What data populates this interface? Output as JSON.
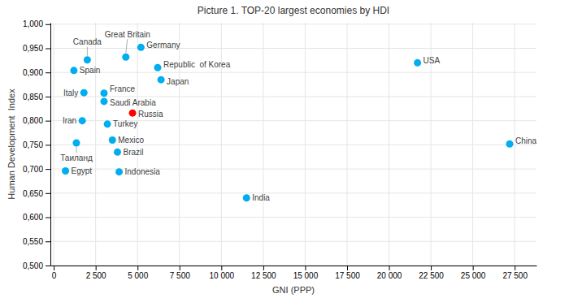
{
  "chart_data": {
    "type": "scatter",
    "title": "Picture 1. TOP-20 largest economies by HDI",
    "xlabel": "GNI (PPP)",
    "ylabel": "Human Development  Index",
    "labels": [
      "USA",
      "China",
      "India",
      "Great Britain",
      "Germany",
      "Republic  of Korea",
      "Japan",
      "France",
      "Canada",
      "Italy",
      "Spain",
      "Russia",
      "Brazil",
      "Mexico",
      "Indonesia",
      "Turkey",
      "Saudi Arabia",
      "Iran",
      "Таиланд",
      "Egypt"
    ],
    "x": [
      21700,
      27200,
      11500,
      4300,
      5200,
      6200,
      6400,
      3000,
      2000,
      1800,
      1200,
      4700,
      3800,
      3500,
      3900,
      3200,
      3000,
      1700,
      1350,
      700
    ],
    "values": [
      0.92,
      0.752,
      0.64,
      0.932,
      0.952,
      0.91,
      0.885,
      0.857,
      0.926,
      0.858,
      0.904,
      0.816,
      0.735,
      0.76,
      0.694,
      0.793,
      0.84,
      0.8,
      0.754,
      0.696
    ],
    "colors": [
      "#00AEEF",
      "#00AEEF",
      "#00AEEF",
      "#00AEEF",
      "#00AEEF",
      "#00AEEF",
      "#00AEEF",
      "#00AEEF",
      "#00AEEF",
      "#00AEEF",
      "#00AEEF",
      "#FF0000",
      "#00AEEF",
      "#00AEEF",
      "#00AEEF",
      "#00AEEF",
      "#00AEEF",
      "#00AEEF",
      "#00AEEF",
      "#00AEEF"
    ],
    "xlim": [
      -200,
      28800
    ],
    "ylim": [
      0.5,
      1.003
    ],
    "xticks": [
      0,
      {
        "value": 2500,
        "label": "2 500"
      },
      {
        "value": 5000,
        "label": "5 000"
      },
      {
        "value": 7500,
        "label": "7 500"
      },
      {
        "value": 10000,
        "label": "10 000"
      },
      {
        "value": 12500,
        "label": "12 500"
      },
      {
        "value": 15000,
        "label": "15 000"
      },
      {
        "value": 17500,
        "label": "17 500"
      },
      {
        "value": 20000,
        "label": "20 000"
      },
      {
        "value": 22500,
        "label": "22 500"
      },
      {
        "value": 25000,
        "label": "25 000"
      },
      {
        "value": 27500,
        "label": "27 500"
      }
    ],
    "yticks": [
      {
        "value": 0.5,
        "label": "0,500"
      },
      {
        "value": 0.55,
        "label": "0,550"
      },
      {
        "value": 0.6,
        "label": "0,600"
      },
      {
        "value": 0.65,
        "label": "0,650"
      },
      {
        "value": 0.7,
        "label": "0,700"
      },
      {
        "value": 0.75,
        "label": "0,750"
      },
      {
        "value": 0.8,
        "label": "0,800"
      },
      {
        "value": 0.85,
        "label": "0,850"
      },
      {
        "value": 0.9,
        "label": "0,900"
      },
      {
        "value": 0.95,
        "label": "0,950"
      },
      {
        "value": 1.0,
        "label": "1,000"
      }
    ],
    "grid": true
  }
}
